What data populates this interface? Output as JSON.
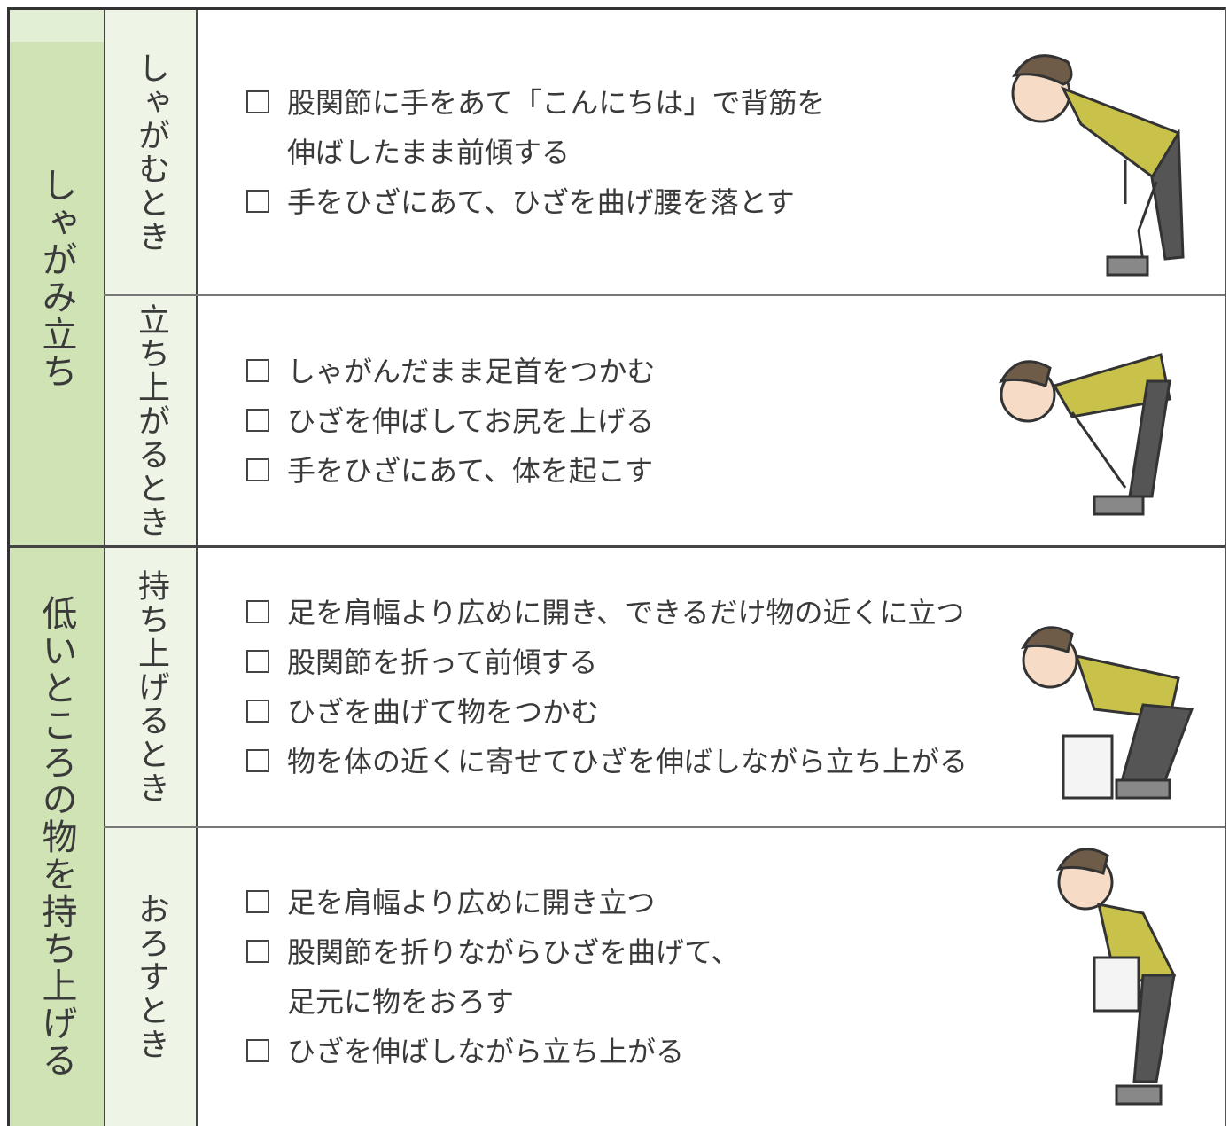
{
  "table": {
    "groups": [
      {
        "label": "しゃがみ立ち",
        "rows": [
          {
            "label": "しゃがむとき",
            "items": [
              [
                "股関節に手をあて「こんにちは」で背筋を",
                "伸ばしたまま前傾する"
              ],
              [
                "手をひざにあて、ひざを曲げ腰を落とす"
              ]
            ]
          },
          {
            "label": "立ち上がるとき",
            "items": [
              [
                "しゃがんだまま足首をつかむ"
              ],
              [
                "ひざを伸ばしてお尻を上げる"
              ],
              [
                "手をひざにあて、体を起こす"
              ]
            ]
          }
        ]
      },
      {
        "label": "低いところの物を持ち上げる",
        "rows": [
          {
            "label": "持ち上げるとき",
            "items": [
              [
                "足を肩幅より広めに開き、できるだけ物の近くに立つ"
              ],
              [
                "股関節を折って前傾する"
              ],
              [
                "ひざを曲げて物をつかむ"
              ],
              [
                "物を体の近くに寄せてひざを伸ばしながら立ち上がる"
              ]
            ]
          },
          {
            "label": "おろすとき",
            "items": [
              [
                "足を肩幅より広めに開き立つ"
              ],
              [
                "股関節を折りながらひざを曲げて、",
                "足元に物をおろす"
              ],
              [
                "ひざを伸ばしながら立ち上がる"
              ]
            ]
          }
        ]
      }
    ]
  }
}
